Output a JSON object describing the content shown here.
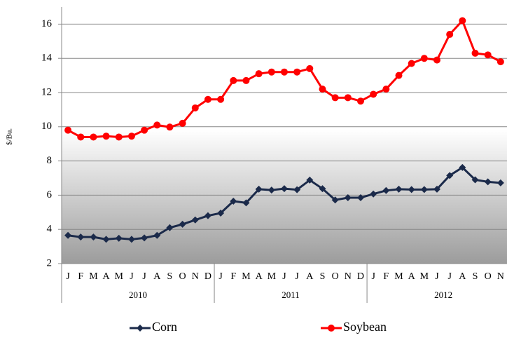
{
  "chart_data": {
    "type": "line",
    "y_label": "$/Bu.",
    "categories": [
      "J",
      "F",
      "M",
      "A",
      "M",
      "J",
      "J",
      "A",
      "S",
      "O",
      "N",
      "D",
      "J",
      "F",
      "M",
      "A",
      "M",
      "J",
      "J",
      "A",
      "S",
      "O",
      "N",
      "D",
      "J",
      "F",
      "M",
      "A",
      "M",
      "J",
      "J",
      "A",
      "S",
      "O",
      "N"
    ],
    "groups": [
      "2010",
      "2011",
      "2012"
    ],
    "series": [
      {
        "name": "Corn",
        "color": "#1b2a4a",
        "marker": "diamond",
        "values": [
          3.65,
          3.55,
          3.55,
          3.42,
          3.48,
          3.42,
          3.5,
          3.65,
          4.1,
          4.3,
          4.55,
          4.8,
          4.95,
          5.65,
          5.55,
          6.35,
          6.3,
          6.38,
          6.32,
          6.88,
          6.38,
          5.72,
          5.85,
          5.85,
          6.07,
          6.27,
          6.35,
          6.33,
          6.33,
          6.35,
          7.15,
          7.62,
          6.9,
          6.78,
          6.72
        ]
      },
      {
        "name": "Soybean",
        "color": "#ff0000",
        "marker": "circle",
        "values": [
          9.8,
          9.4,
          9.4,
          9.45,
          9.4,
          9.45,
          9.8,
          10.1,
          9.98,
          10.2,
          11.1,
          11.6,
          11.6,
          12.7,
          12.7,
          13.1,
          13.2,
          13.2,
          13.2,
          13.4,
          12.2,
          11.7,
          11.7,
          11.5,
          11.9,
          12.2,
          13.0,
          13.7,
          14.0,
          13.9,
          15.4,
          16.2,
          14.3,
          14.2,
          13.8
        ]
      }
    ],
    "ylim": [
      2,
      17
    ],
    "yticks": [
      2,
      4,
      6,
      8,
      10,
      12,
      14,
      16
    ],
    "grid": true,
    "legend": "bottom"
  }
}
